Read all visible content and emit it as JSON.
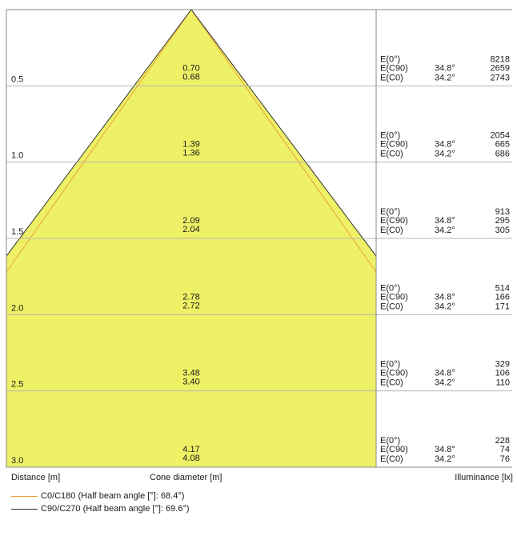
{
  "chart_data": {
    "type": "cone-diagram",
    "colors": {
      "cone_fill": "#eef066",
      "c0_line": "#e8a23a",
      "c90_line": "#333333",
      "grid": "#b5b5b5",
      "frame": "#8a8a8a"
    },
    "rows": [
      {
        "distance": "0.5",
        "d_c0": "0.70",
        "d_c90": "0.68",
        "e0_label": "E(0°)",
        "e0": "8218",
        "ec90_label": "E(C90)",
        "ec90_angle": "34.8°",
        "ec90": "2659",
        "ec0_label": "E(C0)",
        "ec0_angle": "34.2°",
        "ec0": "2743"
      },
      {
        "distance": "1.0",
        "d_c0": "1.39",
        "d_c90": "1.36",
        "e0_label": "E(0°)",
        "e0": "2054",
        "ec90_label": "E(C90)",
        "ec90_angle": "34.8°",
        "ec90": "665",
        "ec0_label": "E(C0)",
        "ec0_angle": "34.2°",
        "ec0": "686"
      },
      {
        "distance": "1.5",
        "d_c0": "2.09",
        "d_c90": "2.04",
        "e0_label": "E(0°)",
        "e0": "913",
        "ec90_label": "E(C90)",
        "ec90_angle": "34.8°",
        "ec90": "295",
        "ec0_label": "E(C0)",
        "ec0_angle": "34.2°",
        "ec0": "305"
      },
      {
        "distance": "2.0",
        "d_c0": "2.78",
        "d_c90": "2.72",
        "e0_label": "E(0°)",
        "e0": "514",
        "ec90_label": "E(C90)",
        "ec90_angle": "34.8°",
        "ec90": "166",
        "ec0_label": "E(C0)",
        "ec0_angle": "34.2°",
        "ec0": "171"
      },
      {
        "distance": "2.5",
        "d_c0": "3.48",
        "d_c90": "3.40",
        "e0_label": "E(0°)",
        "e0": "329",
        "ec90_label": "E(C90)",
        "ec90_angle": "34.8°",
        "ec90": "106",
        "ec0_label": "E(C0)",
        "ec0_angle": "34.2°",
        "ec0": "110"
      },
      {
        "distance": "3.0",
        "d_c0": "4.17",
        "d_c90": "4.08",
        "e0_label": "E(0°)",
        "e0": "228",
        "ec90_label": "E(C90)",
        "ec90_angle": "34.8°",
        "ec90": "74",
        "ec0_label": "E(C0)",
        "ec0_angle": "34.2°",
        "ec0": "76"
      }
    ],
    "half_angle_c0_deg": 68.4,
    "half_angle_c90_deg": 69.6,
    "xlabel_left": "Distance [m]",
    "xlabel_center": "Cone diameter [m]",
    "xlabel_right": "Illuminance [lx]",
    "legend": [
      {
        "label": "C0/C180 (Half beam angle [°]: 68.4°)"
      },
      {
        "label": "C90/C270 (Half beam angle [°]: 69.6°)"
      }
    ]
  }
}
